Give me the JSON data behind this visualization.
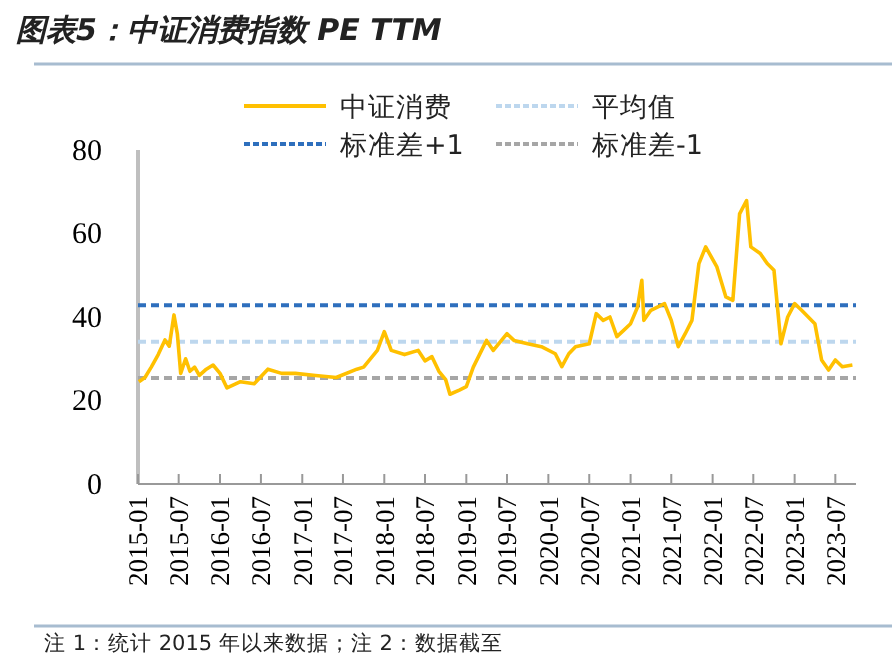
{
  "chart_data": {
    "type": "line",
    "title": "图表5：中证消费指数 PE TTM",
    "x": [
      "2015-01-05",
      "2015-02",
      "2015-03",
      "2015-04",
      "2015-05",
      "2015-05-20",
      "2015-06-10",
      "2015-06-25",
      "2015-07-10",
      "2015-08",
      "2015-08-20",
      "2015-09-10",
      "2015-10",
      "2015-11",
      "2015-12",
      "2016-01",
      "2016-02",
      "2016-04",
      "2016-06",
      "2016-08",
      "2016-10",
      "2016-12",
      "2017-03",
      "2017-06",
      "2017-09",
      "2017-10",
      "2017-12",
      "2018-01",
      "2018-02",
      "2018-04",
      "2018-06",
      "2018-07",
      "2018-08",
      "2018-09",
      "2018-10",
      "2018-10-20",
      "2018-12",
      "2019-01",
      "2019-02",
      "2019-04",
      "2019-05",
      "2019-07",
      "2019-08",
      "2019-10",
      "2019-12",
      "2020-02",
      "2020-03",
      "2020-04",
      "2020-05",
      "2020-07",
      "2020-08",
      "2020-09",
      "2020-10",
      "2020-11",
      "2020-12",
      "2021-01",
      "2021-02",
      "2021-02-20",
      "2021-03",
      "2021-04",
      "2021-06",
      "2021-07",
      "2021-08",
      "2021-09",
      "2021-10",
      "2021-11",
      "2021-12",
      "2022-01-20",
      "2022-03",
      "2022-04",
      "2022-05",
      "2022-06",
      "2022-06-20",
      "2022-08",
      "2022-09",
      "2022-10",
      "2022-11",
      "2022-12",
      "2023-01",
      "2023-02",
      "2023-04",
      "2023-05",
      "2023-06",
      "2023-07",
      "2023-08",
      "2023-09-15"
    ],
    "series": [
      {
        "name": "中证消费",
        "color": "#ffc000",
        "values": [
          24.5,
          25.5,
          28,
          31,
          34.5,
          33,
          40.5,
          36,
          26.5,
          30,
          27,
          28,
          26,
          27.5,
          28.5,
          26.5,
          23,
          24.5,
          24,
          27.5,
          26.5,
          26.5,
          26,
          25.5,
          27.5,
          28,
          32,
          36.5,
          32,
          31,
          32,
          29.5,
          30.5,
          27,
          25,
          21.5,
          22.5,
          23.3,
          28,
          34.4,
          32,
          36,
          34.4,
          33.6,
          32.9,
          31.2,
          28.1,
          31.2,
          32.9,
          33.6,
          40.8,
          39.2,
          40,
          35.3,
          36.8,
          38.4,
          42.4,
          48.8,
          39.2,
          41.6,
          43.2,
          39.2,
          32.9,
          36,
          39.2,
          52.8,
          56.8,
          52,
          44.8,
          44,
          64.7,
          67.9,
          56.8,
          55.2,
          52.8,
          51.2,
          33.6,
          40,
          43.2,
          41.6,
          38.4,
          29.7,
          27.3,
          29.7,
          28.1,
          28.5
        ]
      }
    ],
    "xlim": [
      "2015-01",
      "2023-10"
    ],
    "xticks": [
      "2015-01",
      "2015-07",
      "2016-01",
      "2016-07",
      "2017-01",
      "2017-07",
      "2018-01",
      "2018-07",
      "2019-01",
      "2019-07",
      "2020-01",
      "2020-07",
      "2021-01",
      "2021-07",
      "2022-01",
      "2022-07",
      "2023-01",
      "2023-07"
    ],
    "ylim": [
      0,
      80
    ],
    "yticks": [
      0,
      20,
      40,
      60,
      80
    ],
    "ref_lines": [
      {
        "axis": "y",
        "value": 34.1,
        "label": "平均值",
        "color": "#bdd7ee",
        "line_style": "dashed"
      },
      {
        "axis": "y",
        "value": 42.8,
        "label": "标准差+1",
        "color": "#2e6fbd",
        "line_style": "dashed"
      },
      {
        "axis": "y",
        "value": 25.4,
        "label": "标准差-1",
        "color": "#a6a6a6",
        "line_style": "dashed"
      }
    ],
    "legend": "top",
    "grid": false,
    "line_style": "solid",
    "marker": "none",
    "annotations": [
      "注 1：统计 2015 年以来数据；注 2：数据截至"
    ]
  }
}
